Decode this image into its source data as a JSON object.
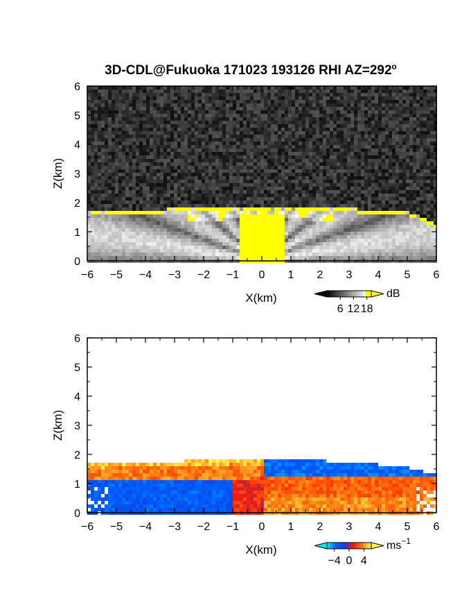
{
  "figure": {
    "title": "3D-CDL@Fukuoka 171023 193126 RHI AZ=292",
    "title_superscript": "o"
  },
  "chart_data": [
    {
      "type": "heatmap",
      "name": "backscatter-intensity-rhi",
      "title": "3D-CDL@Fukuoka 171023 193126 RHI AZ=292°",
      "xlabel": "X(km)",
      "ylabel": "Z(km)",
      "xlim": [
        -6,
        6
      ],
      "ylim": [
        0,
        6
      ],
      "x_ticks": [
        "−6",
        "−5",
        "−4",
        "−3",
        "−2",
        "−1",
        "0",
        "1",
        "2",
        "3",
        "4",
        "5",
        "6"
      ],
      "y_ticks": [
        "0",
        "1",
        "2",
        "3",
        "4",
        "5",
        "6"
      ],
      "colorbar": {
        "unit": "dB",
        "unit_superscript": "",
        "ticks": [
          "6",
          "12",
          "18"
        ],
        "tick_values": [
          6,
          12,
          18
        ],
        "range": [
          0,
          20
        ],
        "colors": [
          "#000000",
          "#ffffff",
          "#ffff00"
        ]
      },
      "layers": {
        "boundary_layer_top_km": [
          [
            -6.0,
            1.62
          ],
          [
            -5.0,
            1.68
          ],
          [
            -4.0,
            1.7
          ],
          [
            -3.0,
            1.72
          ],
          [
            -2.0,
            1.74
          ],
          [
            -1.0,
            1.78
          ],
          [
            0.0,
            1.8
          ],
          [
            1.0,
            1.78
          ],
          [
            2.0,
            1.76
          ],
          [
            3.0,
            1.72
          ],
          [
            4.0,
            1.7
          ],
          [
            5.0,
            1.62
          ],
          [
            5.6,
            1.4
          ],
          [
            6.0,
            1.2
          ]
        ],
        "saturated_region": "yellow core near x=0 and top rim of boundary layer",
        "background": "noise above boundary layer"
      }
    },
    {
      "type": "heatmap",
      "name": "doppler-velocity-rhi",
      "title": "",
      "xlabel": "X(km)",
      "ylabel": "Z(km)",
      "xlim": [
        -6,
        6
      ],
      "ylim": [
        0,
        6
      ],
      "x_ticks": [
        "−6",
        "−5",
        "−4",
        "−3",
        "−2",
        "−1",
        "0",
        "1",
        "2",
        "3",
        "4",
        "5",
        "6"
      ],
      "y_ticks": [
        "0",
        "1",
        "2",
        "3",
        "4",
        "5",
        "6"
      ],
      "colorbar": {
        "unit": "ms",
        "unit_superscript": "−1",
        "ticks": [
          "−4",
          "0",
          "4"
        ],
        "tick_values": [
          -4,
          0,
          4
        ],
        "range": [
          -6,
          6
        ],
        "colors": [
          "#00e0f0",
          "#0050ff",
          "#ff1a00",
          "#ffff40"
        ]
      },
      "layers": {
        "data_top_km": [
          [
            -6.0,
            1.7
          ],
          [
            -5.0,
            1.72
          ],
          [
            -4.0,
            1.74
          ],
          [
            -3.0,
            1.76
          ],
          [
            -2.0,
            1.8
          ],
          [
            -1.0,
            1.84
          ],
          [
            0.0,
            1.82
          ],
          [
            1.0,
            1.8
          ],
          [
            2.0,
            1.78
          ],
          [
            3.0,
            1.74
          ],
          [
            4.0,
            1.66
          ],
          [
            5.0,
            1.55
          ],
          [
            5.6,
            1.4
          ],
          [
            6.0,
            1.3
          ]
        ],
        "left_lower_flow_velocity": -3,
        "left_upper_flow_velocity": 3.5,
        "right_lower_flow_velocity": 3,
        "right_upper_flow_velocity": -3.5
      }
    }
  ]
}
